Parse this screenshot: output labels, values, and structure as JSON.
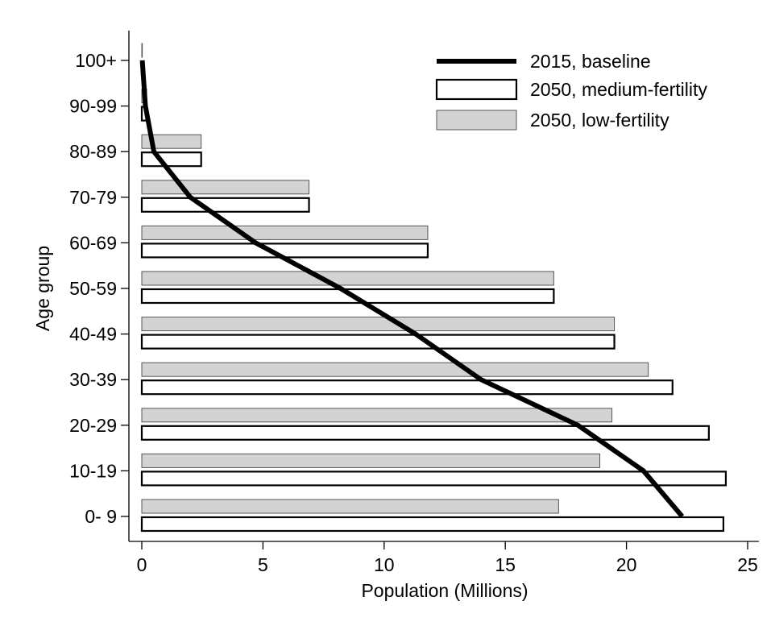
{
  "chart_data": {
    "type": "bar",
    "orientation": "horizontal",
    "title": "",
    "xlabel": "Population (Millions)",
    "ylabel": "Age group",
    "xlim": [
      0,
      25
    ],
    "x_ticks": [
      0,
      5,
      10,
      15,
      20,
      25
    ],
    "grid": false,
    "legend_position": "top-right",
    "categories": [
      "0- 9",
      "10-19",
      "20-29",
      "30-39",
      "40-49",
      "50-59",
      "60-69",
      "70-79",
      "80-89",
      "90-99",
      "100+"
    ],
    "series": [
      {
        "name": "2015, baseline",
        "kind": "line",
        "color": "#000000",
        "values": [
          22.3,
          20.7,
          18.0,
          14.0,
          11.3,
          8.2,
          4.7,
          2.0,
          0.5,
          0.15,
          0.02
        ]
      },
      {
        "name": "2050, medium-fertility",
        "kind": "bar",
        "fill": "#ffffff",
        "stroke": "#000000",
        "values": [
          24.0,
          24.1,
          23.4,
          21.9,
          19.5,
          17.0,
          11.8,
          6.9,
          2.45,
          0.2,
          0.02
        ]
      },
      {
        "name": "2050, low-fertility",
        "kind": "bar",
        "fill": "#d3d3d3",
        "stroke": "#555555",
        "values": [
          17.2,
          18.9,
          19.4,
          20.9,
          19.5,
          17.0,
          11.8,
          6.9,
          2.45,
          0.2,
          0.02
        ]
      }
    ]
  }
}
